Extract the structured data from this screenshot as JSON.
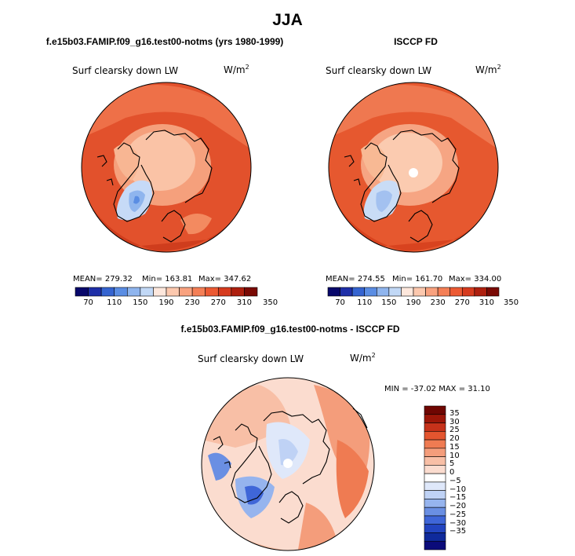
{
  "title": "JJA",
  "colors": {
    "abs_scale": [
      "#08086b",
      "#1f2fa8",
      "#3564d0",
      "#5a8de3",
      "#8fb5ee",
      "#c1d8f6",
      "#fde7dc",
      "#fcc8ae",
      "#f9a27f",
      "#f47f56",
      "#ec5a33",
      "#d63b1e",
      "#ae200f",
      "#7a0a04"
    ],
    "diff_scale": [
      "#0b0b7a",
      "#0f2a9c",
      "#2244c0",
      "#3f66d8",
      "#6a8fe3",
      "#96b4ee",
      "#bfd2f5",
      "#dfe8fa",
      "#ffffff",
      "#fbdccf",
      "#f8bfa6",
      "#f49d7b",
      "#ef7b52",
      "#e4552f",
      "#c6321a",
      "#9c1608",
      "#6f0602"
    ],
    "coast": "#000000"
  },
  "chart_data": [
    {
      "type": "heatmap",
      "projection": "polar-stereographic",
      "title": "f.e15b03.FAMIP.f09_g16.test00-notms (yrs 1980-1999)",
      "variable": "Surf clearsky down LW",
      "units": "W/m",
      "units_exp": "2",
      "stats": {
        "mean": "MEAN= 279.32",
        "min": "Min= 163.81",
        "max": "Max= 347.62"
      },
      "colorbar_ticks": [
        "70",
        "110",
        "150",
        "190",
        "230",
        "270",
        "310",
        "350"
      ]
    },
    {
      "type": "heatmap",
      "projection": "polar-stereographic",
      "title": "ISCCP FD",
      "variable": "Surf clearsky down LW",
      "units": "W/m",
      "units_exp": "2",
      "stats": {
        "mean": "MEAN= 274.55",
        "min": "Min= 161.70",
        "max": "Max= 334.00"
      },
      "colorbar_ticks": [
        "70",
        "110",
        "150",
        "190",
        "230",
        "270",
        "310",
        "350"
      ]
    },
    {
      "type": "heatmap",
      "projection": "polar-stereographic",
      "title": "f.e15b03.FAMIP.f09_g16.test00-notms - ISCCP FD",
      "variable": "Surf clearsky down LW",
      "units": "W/m",
      "units_exp": "2",
      "stats": {
        "minmax": "MIN = -37.02 MAX =  31.10"
      },
      "colorbar_ticks": [
        "35",
        "30",
        "25",
        "20",
        "15",
        "10",
        "5",
        "0",
        "−5",
        "−10",
        "−15",
        "−20",
        "−25",
        "−30",
        "−35"
      ]
    }
  ]
}
